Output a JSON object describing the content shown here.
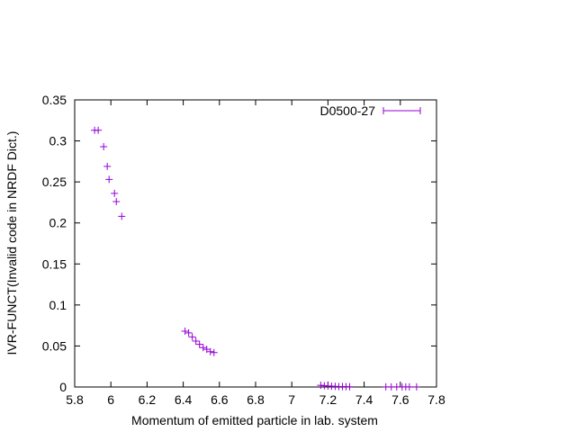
{
  "chart_data": {
    "type": "scatter",
    "title": "",
    "xlabel": "Momentum of emitted particle in lab. system",
    "ylabel": "IVR-FUNCT(Invalid code in NRDF Dict.)",
    "xlim": [
      5.8,
      7.8
    ],
    "ylim": [
      0,
      0.35
    ],
    "x_ticks": [
      5.8,
      6,
      6.2,
      6.4,
      6.6,
      6.8,
      7,
      7.2,
      7.4,
      7.6,
      7.8
    ],
    "x_tick_labels": [
      "5.8",
      "6",
      "6.2",
      "6.4",
      "6.6",
      "6.8",
      "7",
      "7.2",
      "7.4",
      "7.6",
      "7.8"
    ],
    "y_ticks": [
      0,
      0.05,
      0.1,
      0.15,
      0.2,
      0.25,
      0.3,
      0.35
    ],
    "y_tick_labels": [
      "0",
      "0.05",
      "0.1",
      "0.15",
      "0.2",
      "0.25",
      "0.3",
      "0.35"
    ],
    "grid": false,
    "legend_position": "top-right",
    "series": [
      {
        "name": "D0500-27",
        "color": "#9400d3",
        "marker": "plus",
        "x": [
          5.91,
          5.93,
          5.96,
          5.98,
          5.99,
          6.02,
          6.03,
          6.06,
          6.41,
          6.43,
          6.45,
          6.47,
          6.49,
          6.51,
          6.53,
          6.55,
          6.57,
          7.16,
          7.18,
          7.2,
          7.22,
          7.24,
          7.26,
          7.28,
          7.3,
          7.32,
          7.52,
          7.55,
          7.58,
          7.61,
          7.63,
          7.65,
          7.69
        ],
        "y": [
          0.313,
          0.313,
          0.293,
          0.269,
          0.253,
          0.236,
          0.226,
          0.208,
          0.068,
          0.066,
          0.061,
          0.056,
          0.052,
          0.048,
          0.046,
          0.043,
          0.042,
          0.002,
          0.0015,
          0.0012,
          0.001,
          0.0008,
          0.0006,
          0.0005,
          0.0004,
          0.0003,
          0.0002,
          0.0002,
          0.0001,
          0.0001,
          0.0001,
          0.0001,
          0.0001
        ]
      }
    ]
  }
}
